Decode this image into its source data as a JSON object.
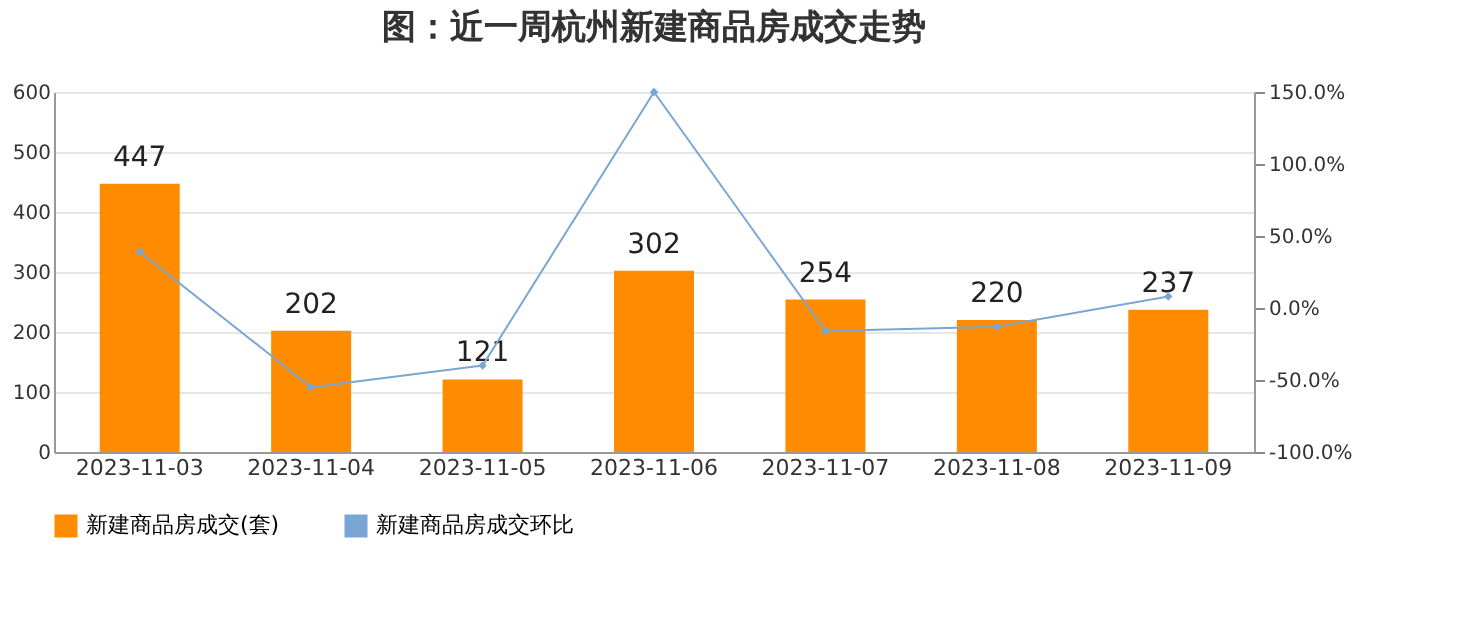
{
  "chart_data": {
    "type": "bar",
    "title": "图：近一周杭州新建商品房成交走势",
    "categories": [
      "2023-11-03",
      "2023-11-04",
      "2023-11-05",
      "2023-11-06",
      "2023-11-07",
      "2023-11-08",
      "2023-11-09"
    ],
    "series": [
      {
        "name": "新建商品房成交(套)",
        "color": "#ff8c00",
        "values": [
          447,
          202,
          121,
          302,
          254,
          220,
          237
        ],
        "value_labels": [
          "447",
          "202",
          "121",
          "302",
          "254",
          "220",
          "237"
        ]
      },
      {
        "name": "新建商品房成交环比",
        "type": "line",
        "axis": "y2",
        "color": "#7aa6d6",
        "values": [
          39,
          -55,
          -40,
          150,
          -16,
          -13,
          8
        ]
      }
    ],
    "line_style": "solid",
    "ylim": [
      0,
      600
    ],
    "yticks": [
      0,
      100,
      200,
      300,
      400,
      500,
      600
    ],
    "y2lim": [
      -100,
      150
    ],
    "y2ticks": [
      {
        "value": -100,
        "label": "-100.0%"
      },
      {
        "value": -50,
        "label": "-50.0%"
      },
      {
        "value": 0,
        "label": "0.0%"
      },
      {
        "value": 50,
        "label": "50.0%"
      },
      {
        "value": 100,
        "label": "100.0%"
      },
      {
        "value": 150,
        "label": "150.0%"
      }
    ],
    "grid": "y",
    "legend": "bottom",
    "marker": "diamond"
  }
}
